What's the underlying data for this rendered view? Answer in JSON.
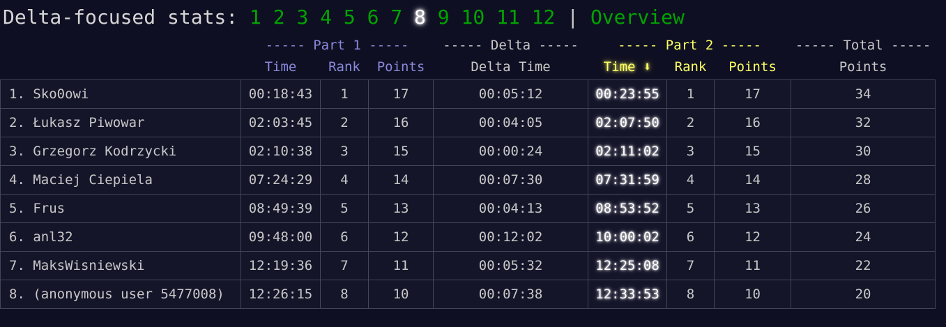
{
  "header": {
    "title": "Delta-focused stats:",
    "days": [
      "1",
      "2",
      "3",
      "4",
      "5",
      "6",
      "7",
      "8",
      "9",
      "10",
      "11",
      "12"
    ],
    "active_day": "8",
    "separator": "|",
    "overview_label": "Overview"
  },
  "table": {
    "group_headers": {
      "part1": "----- Part 1 -----",
      "delta": "----- Delta -----",
      "part2": "----- Part 2 -----",
      "total": "----- Total -----"
    },
    "column_headers": {
      "p1_time": "Time",
      "p1_rank": "Rank",
      "p1_points": "Points",
      "delta_time": "Delta Time",
      "p2_time": "Time ⬇",
      "p2_rank": "Rank",
      "p2_points": "Points",
      "total_points": "Points"
    },
    "rows": [
      {
        "name": "1. Sko0owi",
        "p1_time": "00:18:43",
        "p1_rank": "1",
        "p1_points": "17",
        "delta_time": "00:05:12",
        "p2_time": "00:23:55",
        "p2_rank": "1",
        "p2_points": "17",
        "total_points": "34"
      },
      {
        "name": "2. Łukasz Piwowar",
        "p1_time": "02:03:45",
        "p1_rank": "2",
        "p1_points": "16",
        "delta_time": "00:04:05",
        "p2_time": "02:07:50",
        "p2_rank": "2",
        "p2_points": "16",
        "total_points": "32"
      },
      {
        "name": "3. Grzegorz Kodrzycki",
        "p1_time": "02:10:38",
        "p1_rank": "3",
        "p1_points": "15",
        "delta_time": "00:00:24",
        "p2_time": "02:11:02",
        "p2_rank": "3",
        "p2_points": "15",
        "total_points": "30"
      },
      {
        "name": "4. Maciej Ciepiela",
        "p1_time": "07:24:29",
        "p1_rank": "4",
        "p1_points": "14",
        "delta_time": "00:07:30",
        "p2_time": "07:31:59",
        "p2_rank": "4",
        "p2_points": "14",
        "total_points": "28"
      },
      {
        "name": "5. Frus",
        "p1_time": "08:49:39",
        "p1_rank": "5",
        "p1_points": "13",
        "delta_time": "00:04:13",
        "p2_time": "08:53:52",
        "p2_rank": "5",
        "p2_points": "13",
        "total_points": "26"
      },
      {
        "name": "6. anl32",
        "p1_time": "09:48:00",
        "p1_rank": "6",
        "p1_points": "12",
        "delta_time": "00:12:02",
        "p2_time": "10:00:02",
        "p2_rank": "6",
        "p2_points": "12",
        "total_points": "24"
      },
      {
        "name": "7. MaksWisniewski",
        "p1_time": "12:19:36",
        "p1_rank": "7",
        "p1_points": "11",
        "delta_time": "00:05:32",
        "p2_time": "12:25:08",
        "p2_rank": "7",
        "p2_points": "11",
        "total_points": "22"
      },
      {
        "name": "8. (anonymous user 5477008)",
        "p1_time": "12:26:15",
        "p1_rank": "8",
        "p1_points": "10",
        "delta_time": "00:07:38",
        "p2_time": "12:33:53",
        "p2_rank": "8",
        "p2_points": "10",
        "total_points": "20"
      }
    ]
  },
  "colors": {
    "page_background": "#0f0f23",
    "row_background": "#15152a",
    "border": "#45455a",
    "default_text": "#c8c8c8",
    "title_text": "#d4d4d4",
    "link_green": "#00a300",
    "part1_purple": "#8989db",
    "part2_yellow": "#ffff66",
    "highlight_white": "#ffffff"
  }
}
